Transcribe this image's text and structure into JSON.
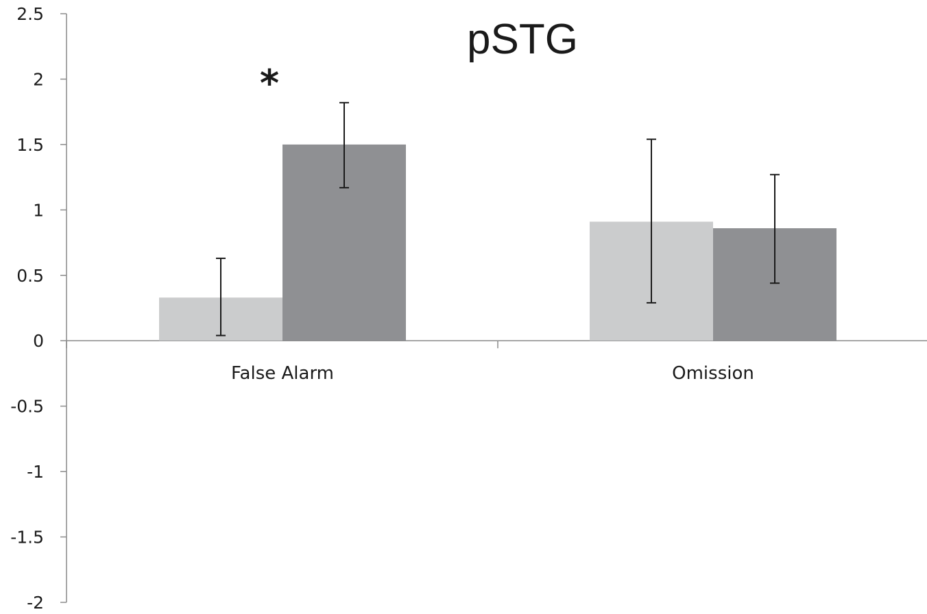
{
  "chart_data": {
    "type": "bar",
    "title": "pSTG",
    "xlabel": "",
    "ylabel": "",
    "categories": [
      "False Alarm",
      "Omission"
    ],
    "series": [
      {
        "values": [
          0.33,
          0.91
        ],
        "error_low": [
          0.04,
          0.29
        ],
        "error_high": [
          0.63,
          1.54
        ],
        "color": "#cbcccd"
      },
      {
        "values": [
          1.5,
          0.86
        ],
        "error_low": [
          1.17,
          0.44
        ],
        "error_high": [
          1.82,
          1.27
        ],
        "color": "#8f9093"
      }
    ],
    "ylim": [
      -2,
      2.5
    ],
    "yticks": [
      "2.5",
      "2",
      "1.5",
      "1",
      "0.5",
      "0",
      "-0.5",
      "-1",
      "-1.5",
      "-2"
    ],
    "ytick_values": [
      2.5,
      2,
      1.5,
      1,
      0.5,
      0,
      -0.5,
      -1,
      -1.5,
      -2
    ],
    "grid": false,
    "legend": "none",
    "annotations": [
      {
        "text": "*",
        "category_index": 0
      }
    ]
  }
}
